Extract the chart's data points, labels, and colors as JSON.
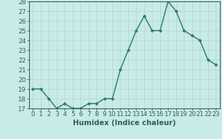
{
  "x": [
    0,
    1,
    2,
    3,
    4,
    5,
    6,
    7,
    8,
    9,
    10,
    11,
    12,
    13,
    14,
    15,
    16,
    17,
    18,
    19,
    20,
    21,
    22,
    23
  ],
  "y": [
    19,
    19,
    18,
    17,
    17.5,
    17,
    17,
    17.5,
    17.5,
    18,
    18,
    21,
    23,
    25,
    26.5,
    25,
    25,
    28,
    27,
    25,
    24.5,
    24,
    22,
    21.5
  ],
  "line_color": "#2e7d6e",
  "marker": "D",
  "marker_size": 2.2,
  "bg_color": "#c8eae8",
  "grid_color": "#b0d4d0",
  "xlabel": "Humidex (Indice chaleur)",
  "ylim": [
    17,
    28
  ],
  "yticks": [
    17,
    18,
    19,
    20,
    21,
    22,
    23,
    24,
    25,
    26,
    27,
    28
  ],
  "xticks": [
    0,
    1,
    2,
    3,
    4,
    5,
    6,
    7,
    8,
    9,
    10,
    11,
    12,
    13,
    14,
    15,
    16,
    17,
    18,
    19,
    20,
    21,
    22,
    23
  ],
  "font_color": "#2e5f5a",
  "font_size": 6.5,
  "xlabel_fontsize": 7.5,
  "line_width": 1.1
}
